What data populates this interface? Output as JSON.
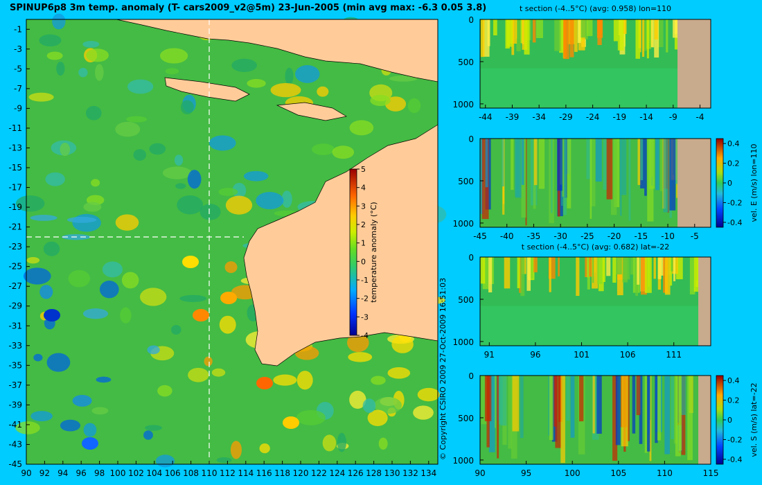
{
  "title": "SPINUP6p8 3m temp. anomaly (T- cars2009_v2@5m) 23-Jun-2005 (min avg max: -6.3 0.05 3.8)",
  "copyright": "© Copyright CSIRO 2009  27-Oct-2009 16:51:03",
  "colors": {
    "background": "#00ccff",
    "land": "#ffcc99",
    "land_section": "#c8aa8c",
    "section_line": "#ffffff"
  },
  "chart_data": [
    {
      "type": "heatmap",
      "name": "map",
      "title": "SPINUP6p8 3m temp. anomaly (T- cars2009_v2@5m) 23-Jun-2005 (min avg max: -6.3 0.05 3.8)",
      "xlim": [
        90,
        135
      ],
      "ylim": [
        -45,
        0
      ],
      "x_ticks": [
        "90",
        "92",
        "94",
        "96",
        "98",
        "100",
        "102",
        "104",
        "106",
        "108",
        "110",
        "112",
        "114",
        "116",
        "118",
        "120",
        "122",
        "124",
        "126",
        "128",
        "130",
        "132",
        "134"
      ],
      "y_ticks": [
        "-1",
        "-3",
        "-5",
        "-7",
        "-9",
        "-11",
        "-13",
        "-15",
        "-17",
        "-19",
        "-21",
        "-23",
        "-25",
        "-27",
        "-29",
        "-31",
        "-33",
        "-35",
        "-37",
        "-39",
        "-41",
        "-43",
        "-45"
      ],
      "section_lon": 110,
      "section_lat": -22,
      "colorbar": {
        "label": "temperature anomaly (°C)",
        "ticks": [
          "5",
          "4",
          "3",
          "2",
          "1",
          "0",
          "-1",
          "-2",
          "-3",
          "-4"
        ],
        "range": [
          -4,
          5
        ]
      }
    },
    {
      "type": "heatmap",
      "name": "t_section_lon110",
      "title": "t section (-4..5°C) (avg: 0.958) lon=110",
      "x_ticks": [
        "-44",
        "-39",
        "-34",
        "-29",
        "-24",
        "-19",
        "-14",
        "-9",
        "-4"
      ],
      "xlim": [
        -45,
        -2
      ],
      "y_ticks": [
        "0",
        "500",
        "1000"
      ],
      "ylim": [
        1050,
        0
      ]
    },
    {
      "type": "heatmap",
      "name": "velE_section_lon110",
      "title": "",
      "x_ticks": [
        "-45",
        "-40",
        "-35",
        "-30",
        "-25",
        "-20",
        "-15",
        "-10",
        "-5"
      ],
      "xlim": [
        -45,
        -2
      ],
      "y_ticks": [
        "0",
        "500",
        "1000"
      ],
      "ylim": [
        1050,
        0
      ],
      "colorbar": {
        "label": "vel. E (m/s) lon=110",
        "ticks": [
          "0.4",
          "0.2",
          "0",
          "-0.2",
          "-0.4"
        ],
        "range": [
          -0.45,
          0.45
        ]
      }
    },
    {
      "type": "heatmap",
      "name": "t_section_lat-22",
      "title": "t section (-4..5°C) (avg: 0.682) lat=-22",
      "x_ticks": [
        "91",
        "96",
        "101",
        "106",
        "111"
      ],
      "xlim": [
        90,
        115
      ],
      "y_ticks": [
        "0",
        "500",
        "1000"
      ],
      "ylim": [
        1050,
        0
      ]
    },
    {
      "type": "heatmap",
      "name": "velS_section_lat-22",
      "title": "",
      "x_ticks": [
        "90",
        "95",
        "100",
        "105",
        "110",
        "115"
      ],
      "xlim": [
        90,
        115
      ],
      "y_ticks": [
        "0",
        "500",
        "1000"
      ],
      "ylim": [
        1050,
        0
      ],
      "colorbar": {
        "label": "vel. S (m/s) lat=-22",
        "ticks": [
          "0.4",
          "0.2",
          "0",
          "-0.2",
          "-0.4"
        ],
        "range": [
          -0.45,
          0.45
        ]
      }
    }
  ]
}
